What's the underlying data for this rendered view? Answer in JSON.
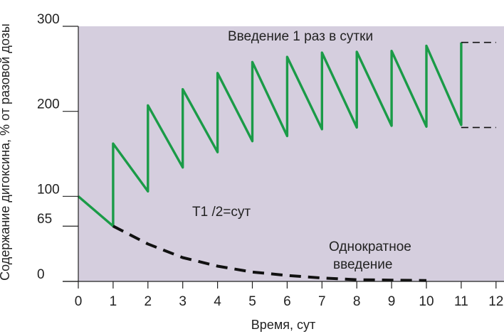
{
  "chart_data": {
    "type": "line",
    "title": "",
    "xlabel": "Время, сут",
    "ylabel": "Содержание дигоксина, % от разовой дозы",
    "xlim": [
      0,
      12
    ],
    "ylim": [
      0,
      300
    ],
    "x_ticks": [
      "0",
      "1",
      "2",
      "3",
      "4",
      "5",
      "6",
      "7",
      "8",
      "9",
      "10",
      "11",
      "12"
    ],
    "y_ticks": [
      {
        "value": 0,
        "label": "0"
      },
      {
        "value": 65,
        "label": "65"
      },
      {
        "value": 100,
        "label": "100"
      },
      {
        "value": 200,
        "label": "200"
      },
      {
        "value": 300,
        "label": "300"
      }
    ],
    "grid": false,
    "background_color": "#d5cede",
    "series": [
      {
        "name": "",
        "style": "solid",
        "color": "#1a9b47",
        "points": [
          [
            0,
            100
          ],
          [
            1,
            65
          ],
          [
            1,
            162
          ],
          [
            2,
            106
          ],
          [
            2,
            207
          ],
          [
            3,
            134
          ],
          [
            3,
            226
          ],
          [
            4,
            152
          ],
          [
            4,
            245
          ],
          [
            5,
            165
          ],
          [
            5,
            258
          ],
          [
            6,
            171
          ],
          [
            6,
            264
          ],
          [
            7,
            179
          ],
          [
            7,
            269
          ],
          [
            8,
            181
          ],
          [
            8,
            270
          ],
          [
            9,
            183
          ],
          [
            9,
            271
          ],
          [
            10,
            182
          ],
          [
            10,
            277
          ],
          [
            11,
            184
          ],
          [
            11,
            281
          ]
        ]
      },
      {
        "name": "",
        "style": "dashed",
        "color": "#111111",
        "points": [
          [
            1,
            65
          ],
          [
            2,
            44
          ],
          [
            3,
            28
          ],
          [
            4,
            18
          ],
          [
            5,
            11
          ],
          [
            6,
            7
          ],
          [
            7,
            4
          ],
          [
            8,
            2
          ],
          [
            9,
            1.5
          ],
          [
            10,
            1
          ]
        ]
      },
      {
        "name": "",
        "style": "dashed",
        "color": "#111111",
        "points": [
          [
            11,
            281
          ],
          [
            12,
            281
          ]
        ]
      },
      {
        "name": "",
        "style": "dashed",
        "color": "#111111",
        "points": [
          [
            11,
            181
          ],
          [
            12,
            181
          ]
        ]
      }
    ],
    "annotations": {
      "daily": "Введение  1 раз в сутки",
      "half_life": "T1 /2=сут",
      "single_line1": "Однократное",
      "single_line2": "введение"
    }
  }
}
